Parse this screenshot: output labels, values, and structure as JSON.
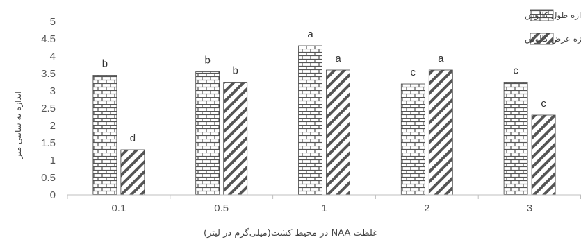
{
  "chart_data": {
    "type": "bar",
    "ylabel": "اندازه به سانتی متر",
    "xlabel": "غلظت NAA در محیط کشت(میلی‌گرم در لیتر)",
    "ylim": [
      0,
      5
    ],
    "yticks": [
      "0",
      "0.5",
      "1",
      "1.5",
      "2",
      "2.5",
      "3",
      "3.5",
      "4",
      "4.5",
      "5"
    ],
    "categories": [
      "0.1",
      "0.5",
      "1",
      "2",
      "3"
    ],
    "grid": false,
    "legend_position": "top-right",
    "series": [
      {
        "name": "اندازه طول کالوس",
        "pattern": "brick",
        "values": [
          3.45,
          3.55,
          4.3,
          3.2,
          3.25
        ],
        "labels": [
          "b",
          "b",
          "a",
          "c",
          "c"
        ]
      },
      {
        "name": "اندازه عرض کالوس",
        "pattern": "diagonal",
        "values": [
          1.3,
          3.25,
          3.6,
          3.6,
          2.3
        ],
        "labels": [
          "d",
          "b",
          "a",
          "a",
          "c"
        ]
      }
    ],
    "colors": {
      "bar_stroke": "#444444",
      "axis": "#bfbfbf",
      "pattern": "#555555"
    }
  }
}
